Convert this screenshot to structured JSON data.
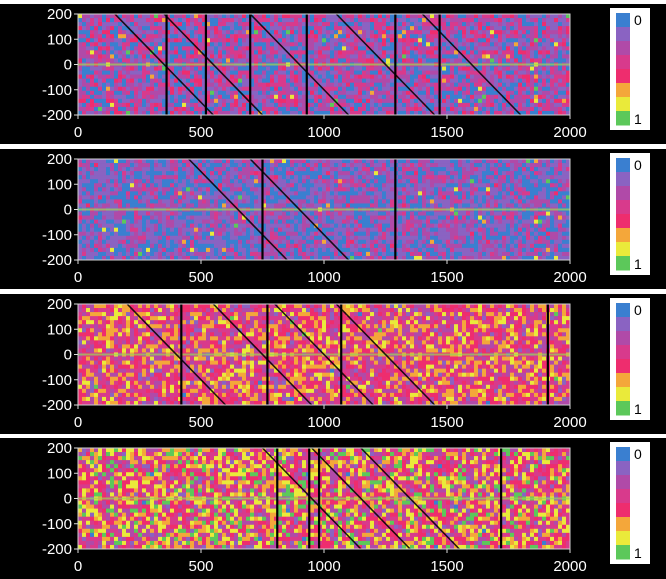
{
  "chart_data": [
    {
      "type": "heatmap",
      "xlim": [
        0,
        2000
      ],
      "ylim": [
        -200,
        200
      ],
      "x_ticks": [
        0,
        500,
        1000,
        1500,
        2000
      ],
      "y_ticks": [
        200,
        100,
        0,
        -100,
        -200
      ],
      "x_tick_labels": [
        "0",
        "500",
        "1000",
        "1500",
        "2000"
      ],
      "y_tick_labels": [
        "200",
        "100",
        "0",
        "-100",
        "-200"
      ],
      "colorbar": {
        "top_label": "0",
        "bottom_label": "1",
        "range": [
          0,
          1
        ]
      },
      "colorscale": [
        "#3a7fd0",
        "#8a63c2",
        "#b04aa8",
        "#d83a8c",
        "#ee2d6e",
        "#f4a73a",
        "#eaea3a",
        "#5cc85a"
      ],
      "dominant_levels": [
        0.0,
        0.15,
        0.3,
        0.45
      ],
      "diagonal_lines_x_start": [
        150,
        350,
        700,
        1050,
        1400
      ],
      "vertical_dark_lines_x": [
        360,
        520,
        700,
        930,
        1290,
        1470
      ]
    },
    {
      "type": "heatmap",
      "xlim": [
        0,
        2000
      ],
      "ylim": [
        -200,
        200
      ],
      "x_ticks": [
        0,
        500,
        1000,
        1500,
        2000
      ],
      "y_ticks": [
        200,
        100,
        0,
        -100,
        -200
      ],
      "x_tick_labels": [
        "0",
        "500",
        "1000",
        "1500",
        "2000"
      ],
      "y_tick_labels": [
        "200",
        "100",
        "0",
        "-100",
        "-200"
      ],
      "colorbar": {
        "top_label": "0",
        "bottom_label": "1",
        "range": [
          0,
          1
        ]
      },
      "colorscale": [
        "#3a7fd0",
        "#8a63c2",
        "#b04aa8",
        "#d83a8c",
        "#ee2d6e",
        "#f4a73a",
        "#eaea3a",
        "#5cc85a"
      ],
      "dominant_levels": [
        0.0,
        0.15,
        0.3
      ],
      "diagonal_lines_x_start": [
        450,
        700
      ],
      "vertical_dark_lines_x": [
        750,
        1290
      ]
    },
    {
      "type": "heatmap",
      "xlim": [
        0,
        2000
      ],
      "ylim": [
        -200,
        200
      ],
      "x_ticks": [
        0,
        500,
        1000,
        1500,
        2000
      ],
      "y_ticks": [
        200,
        100,
        0,
        -100,
        -200
      ],
      "x_tick_labels": [
        "0",
        "500",
        "1000",
        "1500",
        "2000"
      ],
      "y_tick_labels": [
        "200",
        "100",
        "0",
        "-100",
        "-200"
      ],
      "colorbar": {
        "top_label": "0",
        "bottom_label": "1",
        "range": [
          0,
          1
        ]
      },
      "colorscale": [
        "#3a7fd0",
        "#8a63c2",
        "#b04aa8",
        "#d83a8c",
        "#ee2d6e",
        "#f4a73a",
        "#eaea3a",
        "#5cc85a"
      ],
      "dominant_levels": [
        0.3,
        0.45,
        0.6,
        0.75
      ],
      "diagonal_lines_x_start": [
        200,
        550,
        800,
        1050
      ],
      "vertical_dark_lines_x": [
        420,
        770,
        1070,
        1910
      ]
    },
    {
      "type": "heatmap",
      "xlim": [
        0,
        2000
      ],
      "ylim": [
        -200,
        200
      ],
      "x_ticks": [
        0,
        500,
        1000,
        1500,
        2000
      ],
      "y_ticks": [
        200,
        100,
        0,
        -100,
        -200
      ],
      "x_tick_labels": [
        "0",
        "500",
        "1000",
        "1500",
        "2000"
      ],
      "y_tick_labels": [
        "200",
        "100",
        "0",
        "-100",
        "-200"
      ],
      "colorbar": {
        "top_label": "0",
        "bottom_label": "1",
        "range": [
          0,
          1
        ]
      },
      "colorscale": [
        "#3a7fd0",
        "#8a63c2",
        "#b04aa8",
        "#d83a8c",
        "#ee2d6e",
        "#f4a73a",
        "#eaea3a",
        "#5cc85a"
      ],
      "dominant_levels": [
        0.3,
        0.5,
        0.7,
        0.9
      ],
      "diagonal_lines_x_start": [
        750,
        950,
        1150
      ],
      "vertical_dark_lines_x": [
        810,
        940,
        980,
        1720
      ]
    }
  ]
}
